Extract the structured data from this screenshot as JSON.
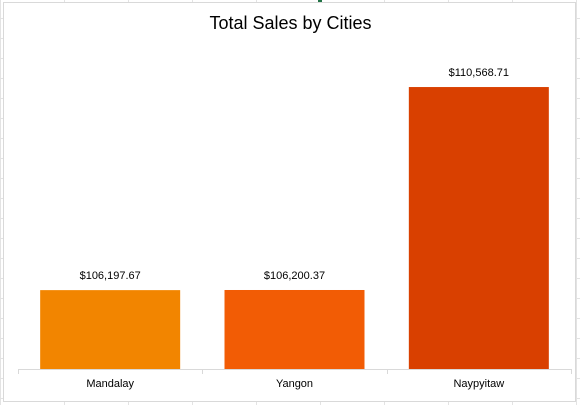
{
  "chart_data": {
    "type": "bar",
    "title": "Total Sales by Cities",
    "categories": [
      "Mandalay",
      "Yangon",
      "Naypyitaw"
    ],
    "values": [
      106197.67,
      106200.37,
      110568.71
    ],
    "data_labels": [
      "$106,197.67",
      "$106,200.37",
      "$110,568.71"
    ],
    "colors": [
      "#f28500",
      "#f25c05",
      "#d94000"
    ],
    "xlabel": "",
    "ylabel": "",
    "ylim": [
      104500,
      111000
    ],
    "grid": false,
    "legend": "none"
  }
}
